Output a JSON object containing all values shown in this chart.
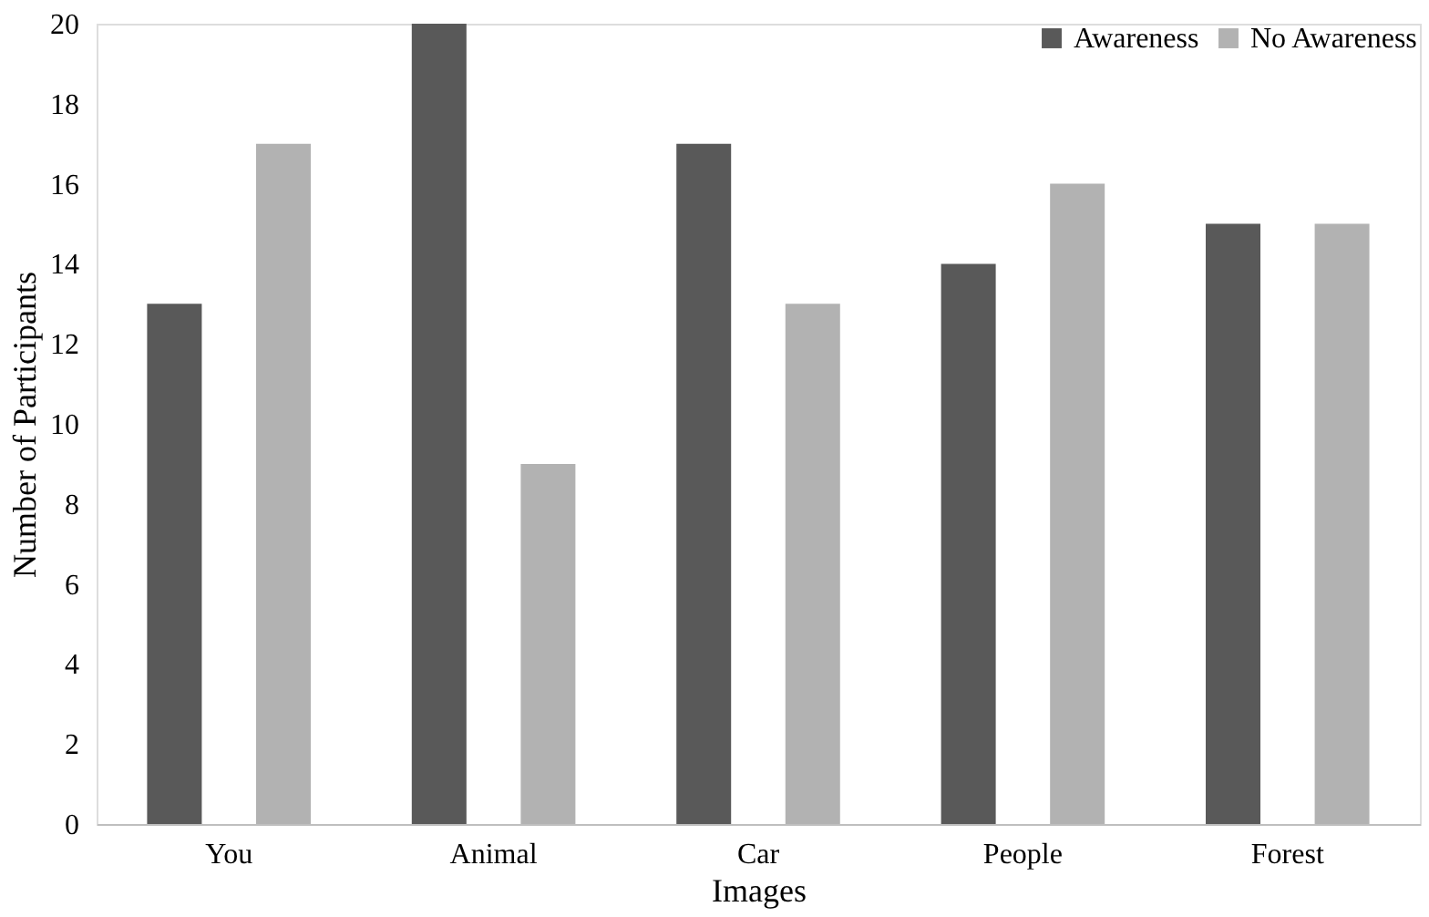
{
  "chart_data": {
    "type": "bar",
    "xlabel": "Images",
    "ylabel": "Number of Participants",
    "categories": [
      "You",
      "Animal",
      "Car",
      "People",
      "Forest"
    ],
    "series": [
      {
        "name": "Awareness",
        "color": "#595959",
        "values": [
          13,
          20,
          17,
          14,
          15
        ]
      },
      {
        "name": "No Awareness",
        "color": "#b2b2b2",
        "values": [
          17,
          9,
          13,
          16,
          15
        ]
      }
    ],
    "ylim": [
      0,
      20
    ],
    "yticks": [
      0,
      2,
      4,
      6,
      8,
      10,
      12,
      14,
      16,
      18,
      20
    ],
    "grid": false,
    "legend": "top right"
  }
}
